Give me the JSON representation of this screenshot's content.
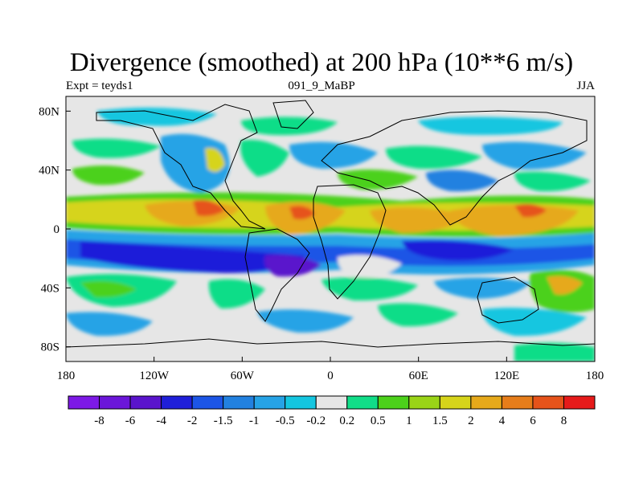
{
  "title": "Divergence (smoothed) at 200 hPa (10**6 m/s)",
  "subtitle_left": "Expt = teyds1",
  "subtitle_center": "091_9_MaBP",
  "subtitle_right": "JJA",
  "x_ticks": [
    "180",
    "120W",
    "60W",
    "0",
    "60E",
    "120E",
    "180"
  ],
  "y_ticks": [
    "80N",
    "40N",
    "0",
    "40S",
    "80S"
  ],
  "colorbar": {
    "colors": [
      "#7d19e6",
      "#6b16d9",
      "#5a14cc",
      "#1f1fd9",
      "#1c55e6",
      "#2281e0",
      "#26a3e6",
      "#14c6e0",
      "#e6e6e6",
      "#11dd88",
      "#4cd11a",
      "#9ad417",
      "#d6d41a",
      "#e6a91a",
      "#e67d1a",
      "#e6531a",
      "#e61a1a"
    ],
    "labels": [
      "-8",
      "-6",
      "-4",
      "-2",
      "-1.5",
      "-1",
      "-0.5",
      "-0.2",
      "0.2",
      "0.5",
      "1",
      "1.5",
      "2",
      "4",
      "6",
      "8"
    ]
  },
  "map_data": {
    "field": "divergence at 200 hPa, JJA",
    "units": "10**6 m/s",
    "lon_range": [
      -180,
      180
    ],
    "lat_range": [
      -90,
      90
    ]
  }
}
